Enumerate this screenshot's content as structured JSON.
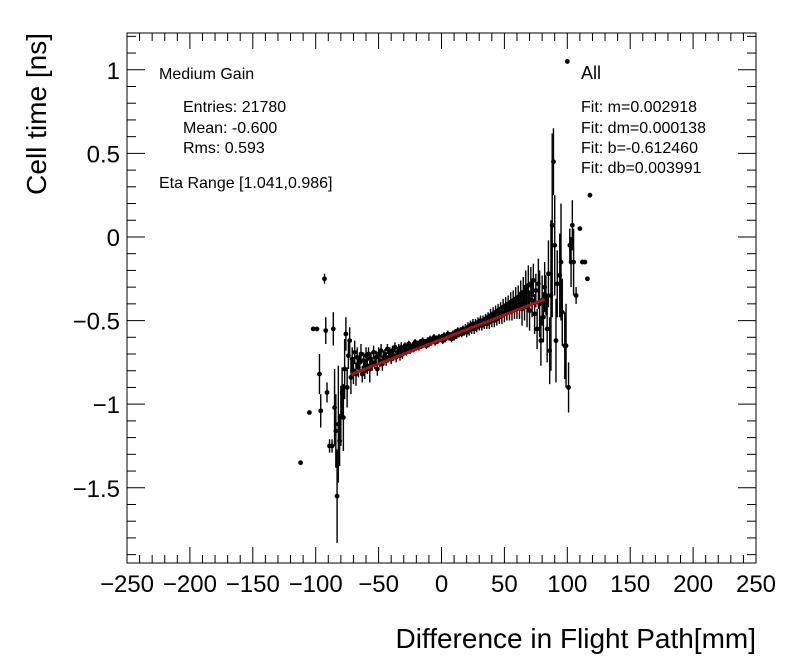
{
  "chart_data": {
    "type": "scatter",
    "xlabel": "Difference in Flight Path[mm]",
    "ylabel": "Cell time [ns]",
    "xlim": [
      -250,
      250
    ],
    "ylim": [
      -1.95,
      1.22
    ],
    "x_ticks": [
      -250,
      -200,
      -150,
      -100,
      -50,
      0,
      50,
      100,
      150,
      200,
      250
    ],
    "x_tick_labels": [
      "−250",
      "−200",
      "−150",
      "−100",
      "−50",
      "0",
      "50",
      "100",
      "150",
      "200",
      "250"
    ],
    "y_ticks": [
      -1.5,
      -1,
      -0.5,
      0,
      0.5,
      1
    ],
    "y_tick_labels": [
      "−1.5",
      "−1",
      "−0.5",
      "0",
      "0.5",
      "1"
    ],
    "grid": false,
    "stats": {
      "gain": "Medium Gain",
      "entries": "Entries: 21780",
      "mean": "Mean: -0.600",
      "rms": "Rms: 0.593",
      "eta_range": "Eta Range [1.041,0.986]"
    },
    "fit_box": {
      "label": "All",
      "m": "Fit: m=0.002918",
      "dm": "Fit: dm=0.000138",
      "b": "Fit: b=-0.612460",
      "db": "Fit: db=0.003991"
    },
    "fit_line": {
      "color": "#b01010",
      "x_start": -72,
      "x_end": 82,
      "slope": 0.002918,
      "intercept": -0.61246
    },
    "marker_color": "#000000",
    "points": [
      [
        -112,
        -1.35,
        0.0
      ],
      [
        -105,
        -1.05,
        0.0
      ],
      [
        -102,
        -0.55,
        0.0
      ],
      [
        -99,
        -0.55,
        0.0
      ],
      [
        -97,
        -0.82,
        0.12
      ],
      [
        -96,
        -1.04,
        0.1
      ],
      [
        -93,
        -0.25,
        0.03
      ],
      [
        -92,
        -0.56,
        0.08
      ],
      [
        -91,
        -0.93,
        0.06
      ],
      [
        -89,
        -1.25,
        0.04
      ],
      [
        -87,
        -1.25,
        0.04
      ],
      [
        -86,
        -0.55,
        0.1
      ],
      [
        -85,
        -1.02,
        0.23
      ],
      [
        -84,
        -1.16,
        0.22
      ],
      [
        -83,
        -1.55,
        0.28
      ],
      [
        -82,
        -1.12,
        0.35
      ],
      [
        -81,
        -1.22,
        0.15
      ],
      [
        -80,
        -1.07,
        0.18
      ],
      [
        -79,
        -0.93,
        0.15
      ],
      [
        -78,
        -1.08,
        0.2
      ],
      [
        -77,
        -0.79,
        0.18
      ],
      [
        -76,
        -0.58,
        0.1
      ],
      [
        -75,
        -0.9,
        0.12
      ],
      [
        -74,
        -0.71,
        0.08
      ],
      [
        -73,
        -0.62,
        0.08
      ],
      [
        -72,
        -0.84,
        0.1
      ],
      [
        -71,
        -0.73,
        0.07
      ],
      [
        -70,
        -0.8,
        0.08
      ],
      [
        -69,
        -0.69,
        0.07
      ],
      [
        -68,
        -0.82,
        0.07
      ],
      [
        -67,
        -0.72,
        0.06
      ],
      [
        -66,
        -0.78,
        0.06
      ],
      [
        -65,
        -0.75,
        0.05
      ],
      [
        -64,
        -0.7,
        0.06
      ],
      [
        -63,
        -0.82,
        0.05
      ],
      [
        -62,
        -0.74,
        0.05
      ],
      [
        -61,
        -0.8,
        0.05
      ],
      [
        -60,
        -0.71,
        0.05
      ],
      [
        -59,
        -0.77,
        0.05
      ],
      [
        -58,
        -0.7,
        0.04
      ],
      [
        -57,
        -0.79,
        0.08
      ],
      [
        -56,
        -0.73,
        0.04
      ],
      [
        -55,
        -0.76,
        0.04
      ],
      [
        -54,
        -0.69,
        0.04
      ],
      [
        -53,
        -0.75,
        0.04
      ],
      [
        -52,
        -0.72,
        0.04
      ],
      [
        -51,
        -0.79,
        0.04
      ],
      [
        -50,
        -0.7,
        0.04
      ],
      [
        -49,
        -0.74,
        0.04
      ],
      [
        -48,
        -0.68,
        0.04
      ],
      [
        -47,
        -0.76,
        0.04
      ],
      [
        -46,
        -0.72,
        0.04
      ],
      [
        -45,
        -0.7,
        0.03
      ],
      [
        -44,
        -0.74,
        0.03
      ],
      [
        -43,
        -0.67,
        0.03
      ],
      [
        -42,
        -0.72,
        0.03
      ],
      [
        -41,
        -0.69,
        0.03
      ],
      [
        -40,
        -0.73,
        0.03
      ],
      [
        -39,
        -0.68,
        0.03
      ],
      [
        -38,
        -0.71,
        0.03
      ],
      [
        -37,
        -0.66,
        0.03
      ],
      [
        -36,
        -0.72,
        0.03
      ],
      [
        -35,
        -0.69,
        0.03
      ],
      [
        -34,
        -0.67,
        0.03
      ],
      [
        -33,
        -0.71,
        0.03
      ],
      [
        -32,
        -0.66,
        0.03
      ],
      [
        -31,
        -0.7,
        0.03
      ],
      [
        -30,
        -0.68,
        0.03
      ],
      [
        -29,
        -0.65,
        0.02
      ],
      [
        -28,
        -0.69,
        0.02
      ],
      [
        -27,
        -0.67,
        0.02
      ],
      [
        -26,
        -0.64,
        0.02
      ],
      [
        -25,
        -0.68,
        0.02
      ],
      [
        -24,
        -0.66,
        0.02
      ],
      [
        -23,
        -0.65,
        0.02
      ],
      [
        -22,
        -0.67,
        0.02
      ],
      [
        -21,
        -0.63,
        0.02
      ],
      [
        -20,
        -0.66,
        0.02
      ],
      [
        -19,
        -0.64,
        0.02
      ],
      [
        -18,
        -0.66,
        0.02
      ],
      [
        -17,
        -0.63,
        0.02
      ],
      [
        -16,
        -0.65,
        0.02
      ],
      [
        -15,
        -0.62,
        0.02
      ],
      [
        -14,
        -0.64,
        0.02
      ],
      [
        -13,
        -0.63,
        0.02
      ],
      [
        -12,
        -0.65,
        0.02
      ],
      [
        -11,
        -0.62,
        0.02
      ],
      [
        -10,
        -0.64,
        0.02
      ],
      [
        -9,
        -0.61,
        0.02
      ],
      [
        -8,
        -0.63,
        0.02
      ],
      [
        -7,
        -0.62,
        0.02
      ],
      [
        -6,
        -0.6,
        0.02
      ],
      [
        -5,
        -0.63,
        0.02
      ],
      [
        -4,
        -0.61,
        0.02
      ],
      [
        -3,
        -0.62,
        0.02
      ],
      [
        -2,
        -0.6,
        0.02
      ],
      [
        -1,
        -0.61,
        0.02
      ],
      [
        0,
        -0.6,
        0.02
      ],
      [
        1,
        -0.62,
        0.02
      ],
      [
        2,
        -0.59,
        0.02
      ],
      [
        3,
        -0.61,
        0.02
      ],
      [
        4,
        -0.6,
        0.02
      ],
      [
        5,
        -0.58,
        0.02
      ],
      [
        6,
        -0.6,
        0.02
      ],
      [
        7,
        -0.59,
        0.02
      ],
      [
        8,
        -0.61,
        0.02
      ],
      [
        9,
        -0.58,
        0.02
      ],
      [
        10,
        -0.6,
        0.02
      ],
      [
        11,
        -0.57,
        0.02
      ],
      [
        12,
        -0.59,
        0.02
      ],
      [
        13,
        -0.56,
        0.02
      ],
      [
        14,
        -0.58,
        0.02
      ],
      [
        15,
        -0.56,
        0.02
      ],
      [
        16,
        -0.58,
        0.02
      ],
      [
        17,
        -0.55,
        0.02
      ],
      [
        18,
        -0.57,
        0.02
      ],
      [
        19,
        -0.55,
        0.03
      ],
      [
        20,
        -0.57,
        0.03
      ],
      [
        21,
        -0.54,
        0.03
      ],
      [
        22,
        -0.56,
        0.03
      ],
      [
        23,
        -0.53,
        0.03
      ],
      [
        24,
        -0.55,
        0.03
      ],
      [
        25,
        -0.52,
        0.03
      ],
      [
        26,
        -0.55,
        0.03
      ],
      [
        27,
        -0.52,
        0.03
      ],
      [
        28,
        -0.54,
        0.03
      ],
      [
        29,
        -0.51,
        0.03
      ],
      [
        30,
        -0.53,
        0.03
      ],
      [
        31,
        -0.5,
        0.03
      ],
      [
        32,
        -0.53,
        0.03
      ],
      [
        33,
        -0.5,
        0.03
      ],
      [
        34,
        -0.52,
        0.03
      ],
      [
        35,
        -0.49,
        0.03
      ],
      [
        36,
        -0.52,
        0.03
      ],
      [
        37,
        -0.48,
        0.03
      ],
      [
        38,
        -0.51,
        0.04
      ],
      [
        39,
        -0.47,
        0.04
      ],
      [
        40,
        -0.5,
        0.04
      ],
      [
        41,
        -0.46,
        0.04
      ],
      [
        42,
        -0.5,
        0.04
      ],
      [
        43,
        -0.45,
        0.04
      ],
      [
        44,
        -0.49,
        0.04
      ],
      [
        45,
        -0.44,
        0.04
      ],
      [
        46,
        -0.48,
        0.04
      ],
      [
        47,
        -0.43,
        0.04
      ],
      [
        48,
        -0.47,
        0.05
      ],
      [
        49,
        -0.42,
        0.05
      ],
      [
        50,
        -0.46,
        0.05
      ],
      [
        51,
        -0.41,
        0.05
      ],
      [
        52,
        -0.45,
        0.05
      ],
      [
        53,
        -0.4,
        0.05
      ],
      [
        54,
        -0.45,
        0.05
      ],
      [
        55,
        -0.39,
        0.06
      ],
      [
        56,
        -0.44,
        0.06
      ],
      [
        57,
        -0.38,
        0.06
      ],
      [
        58,
        -0.43,
        0.06
      ],
      [
        59,
        -0.37,
        0.07
      ],
      [
        60,
        -0.42,
        0.07
      ],
      [
        61,
        -0.36,
        0.07
      ],
      [
        62,
        -0.41,
        0.08
      ],
      [
        63,
        -0.34,
        0.08
      ],
      [
        64,
        -0.43,
        0.1
      ],
      [
        65,
        -0.33,
        0.09
      ],
      [
        66,
        -0.4,
        0.1
      ],
      [
        67,
        -0.3,
        0.1
      ],
      [
        68,
        -0.42,
        0.12
      ],
      [
        69,
        -0.29,
        0.12
      ],
      [
        70,
        -0.44,
        0.12
      ],
      [
        71,
        -0.28,
        0.1
      ],
      [
        72,
        -0.38,
        0.1
      ],
      [
        73,
        -0.26,
        0.1
      ],
      [
        74,
        -0.46,
        0.12
      ],
      [
        75,
        -0.32,
        0.1
      ],
      [
        76,
        -0.55,
        0.12
      ],
      [
        77,
        -0.28,
        0.15
      ],
      [
        78,
        -0.4,
        0.2
      ],
      [
        79,
        -0.62,
        0.15
      ],
      [
        80,
        -0.38,
        0.15
      ],
      [
        81,
        -0.48,
        0.15
      ],
      [
        82,
        -0.3,
        0.15
      ],
      [
        83,
        -0.35,
        0.12
      ],
      [
        84,
        -0.55,
        0.2
      ],
      [
        85,
        -0.22,
        0.2
      ],
      [
        86,
        -0.68,
        0.2
      ],
      [
        87,
        -0.35,
        0.45
      ],
      [
        88,
        0.07,
        0.55
      ],
      [
        89,
        0.45,
        0.2
      ],
      [
        90,
        -0.05,
        0.3
      ],
      [
        91,
        -0.62,
        0.25
      ],
      [
        92,
        -0.28,
        0.2
      ],
      [
        94,
        -0.23,
        0.25
      ],
      [
        95,
        -0.15,
        0.35
      ],
      [
        96,
        -0.45,
        0.2
      ],
      [
        98,
        -0.65,
        0.2
      ],
      [
        99,
        -0.65,
        0.25
      ],
      [
        100,
        1.05,
        0.0
      ],
      [
        101,
        -0.9,
        0.15
      ],
      [
        102,
        -0.05,
        0.1
      ],
      [
        103,
        -0.15,
        0.15
      ],
      [
        104,
        0.07,
        0.15
      ],
      [
        105,
        -0.15,
        0.2
      ],
      [
        107,
        -0.35,
        0.05
      ],
      [
        110,
        0.05,
        0.0
      ],
      [
        112,
        -0.15,
        0.0
      ],
      [
        114,
        -0.15,
        0.0
      ],
      [
        116,
        -0.25,
        0.0
      ],
      [
        118,
        0.25,
        0.0
      ]
    ]
  }
}
